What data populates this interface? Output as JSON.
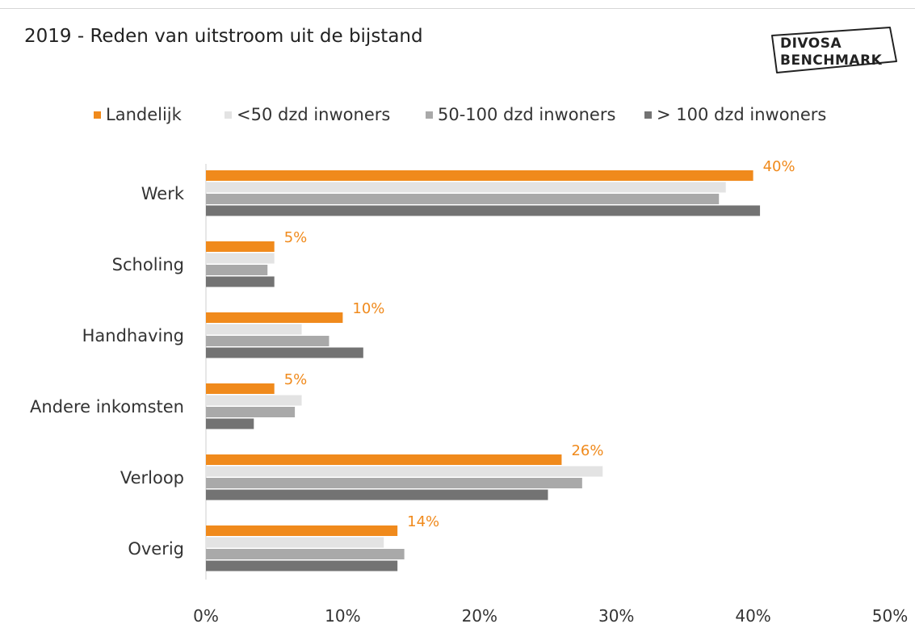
{
  "title": "2019 - Reden van uitstroom uit de bijstand",
  "logo": {
    "line1": "DIVOSA",
    "line2": "BENCHMARK"
  },
  "colors": {
    "landelijk": "#f08a1c",
    "small": "#e3e3e3",
    "medium": "#a9a9a9",
    "large": "#737373",
    "label": "#f08a1c"
  },
  "chart_data": {
    "type": "bar",
    "orientation": "horizontal",
    "categories": [
      "Werk",
      "Scholing",
      "Handhaving",
      "Andere inkomsten",
      "Verloop",
      "Overig"
    ],
    "series": [
      {
        "name": "Landelijk",
        "values": [
          40,
          5,
          10,
          5,
          26,
          14
        ]
      },
      {
        "name": "<50 dzd inwoners",
        "values": [
          38,
          5,
          7,
          7,
          29,
          13
        ]
      },
      {
        "name": "50-100 dzd inwoners",
        "values": [
          37.5,
          4.5,
          9,
          6.5,
          27.5,
          14.5
        ]
      },
      {
        "name": "> 100 dzd inwoners",
        "values": [
          40.5,
          5,
          11.5,
          3.5,
          25,
          14
        ]
      }
    ],
    "data_labels": [
      "40%",
      "5%",
      "10%",
      "5%",
      "26%",
      "14%"
    ],
    "xlim": [
      0,
      50
    ],
    "xticks": [
      "0%",
      "10%",
      "20%",
      "30%",
      "40%",
      "50%"
    ],
    "legend_position": "top",
    "grid": false
  }
}
